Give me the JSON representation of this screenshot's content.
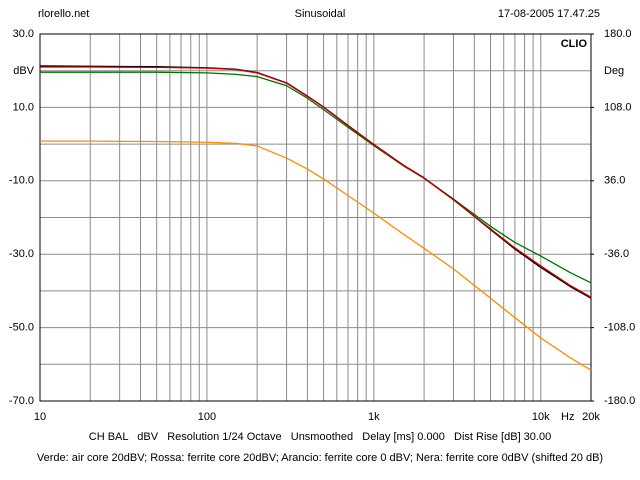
{
  "chart_data": {
    "type": "line",
    "header_left": "rlorello.net",
    "title": "Sinusoidal",
    "header_right": "17-08-2005 17.47.25",
    "brand": "CLIO",
    "y_label": "dBV",
    "y2_label": "Deg",
    "x_label": "Hz",
    "footer_settings": "CH BAL   dBV   Resolution 1/24 Octave   Unsmoothed   Delay [ms] 0.000   Dist Rise [dB] 30.00",
    "footer_legend": "Verde: air core 20dBV; Rossa: ferrite core 20dBV; Arancio: ferrite core 0 dBV; Nera: ferrite core 0dBV (shifted 20 dB)",
    "log_x": true,
    "grid": true,
    "xlim": [
      10,
      20000
    ],
    "xticks": [
      10,
      100,
      {
        "value": 1000,
        "label": "1k"
      },
      {
        "value": 10000,
        "label": "10k"
      },
      {
        "value": 20000,
        "label": "20k"
      }
    ],
    "ylim": [
      -70,
      30
    ],
    "yticks": [
      {
        "value": 30,
        "label": "30.0"
      },
      {
        "value": 10,
        "label": "10.0"
      },
      {
        "value": -10,
        "label": "-10.0"
      },
      {
        "value": -30,
        "label": "-30.0"
      },
      {
        "value": -50,
        "label": "-50.0"
      },
      {
        "value": -70,
        "label": "-70.0"
      }
    ],
    "y2lim": [
      -180,
      180
    ],
    "y2ticks": [
      {
        "value": 180,
        "label": "180.0"
      },
      {
        "value": 108,
        "label": "108.0"
      },
      {
        "value": 36,
        "label": "36.0"
      },
      {
        "value": -36,
        "label": "-36.0"
      },
      {
        "value": -108,
        "label": "-108.0"
      },
      {
        "value": -180,
        "label": "-180.0"
      }
    ],
    "x": [
      10,
      20,
      50,
      100,
      150,
      200,
      300,
      400,
      500,
      700,
      1000,
      1500,
      2000,
      3000,
      5000,
      7000,
      10000,
      15000,
      20000
    ],
    "series": [
      {
        "color": "#ff8c00",
        "values": [
          0.8,
          0.8,
          0.7,
          0.5,
          0.2,
          -0.5,
          -3.8,
          -6.8,
          -9.5,
          -14.0,
          -18.8,
          -24.5,
          -28.4,
          -34.0,
          -42.0,
          -47.3,
          -52.8,
          -58.2,
          -61.6
        ]
      },
      {
        "color": "#007000",
        "values": [
          19.6,
          19.6,
          19.6,
          19.4,
          19.0,
          18.4,
          15.9,
          12.5,
          9.4,
          4.6,
          -0.4,
          -5.9,
          -9.3,
          -15.0,
          -22.4,
          -26.8,
          -30.5,
          -35.0,
          -37.8
        ]
      },
      {
        "color": "#000000",
        "values": [
          21.3,
          21.2,
          21.1,
          20.8,
          20.4,
          19.5,
          16.7,
          13.1,
          10.1,
          5.1,
          -0.1,
          -5.7,
          -9.2,
          -15.1,
          -23.3,
          -28.6,
          -33.6,
          -38.8,
          -42.0
        ]
      },
      {
        "color": "#c00000",
        "values": [
          21.0,
          21.0,
          20.9,
          20.7,
          20.3,
          19.4,
          16.6,
          13.0,
          10.0,
          5.0,
          -0.2,
          -5.8,
          -9.3,
          -15.2,
          -23.1,
          -28.3,
          -33.2,
          -38.5,
          -41.7
        ]
      }
    ]
  }
}
